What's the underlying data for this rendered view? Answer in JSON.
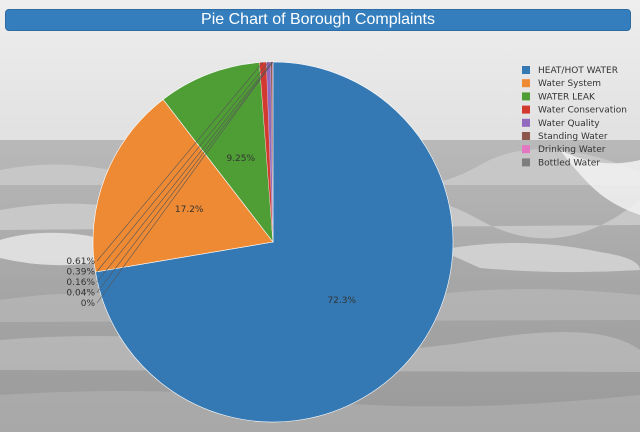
{
  "chart_data": {
    "type": "pie",
    "title": "Pie Chart of Borough Complaints",
    "slices": [
      {
        "label": "HEAT/HOT WATER",
        "percent": 72.3,
        "display": "72.3%",
        "color": "#3579b4"
      },
      {
        "label": "Water System",
        "percent": 17.2,
        "display": "17.2%",
        "color": "#ee8a34"
      },
      {
        "label": "WATER LEAK",
        "percent": 9.25,
        "display": "9.25%",
        "color": "#4f9e35"
      },
      {
        "label": "Water Conservation",
        "percent": 0.61,
        "display": "0.61%",
        "color": "#d23a30"
      },
      {
        "label": "Water Quality",
        "percent": 0.39,
        "display": "0.39%",
        "color": "#9169bd"
      },
      {
        "label": "Standing Water",
        "percent": 0.16,
        "display": "0.16%",
        "color": "#8c564b"
      },
      {
        "label": "Drinking Water",
        "percent": 0.04,
        "display": "0.04%",
        "color": "#e377c2"
      },
      {
        "label": "Bottled Water",
        "percent": 0.0,
        "display": "0%",
        "color": "#7f7f7f"
      }
    ],
    "legend_position": "top-right",
    "direction": "clockwise",
    "start_angle": "12 o'clock"
  }
}
